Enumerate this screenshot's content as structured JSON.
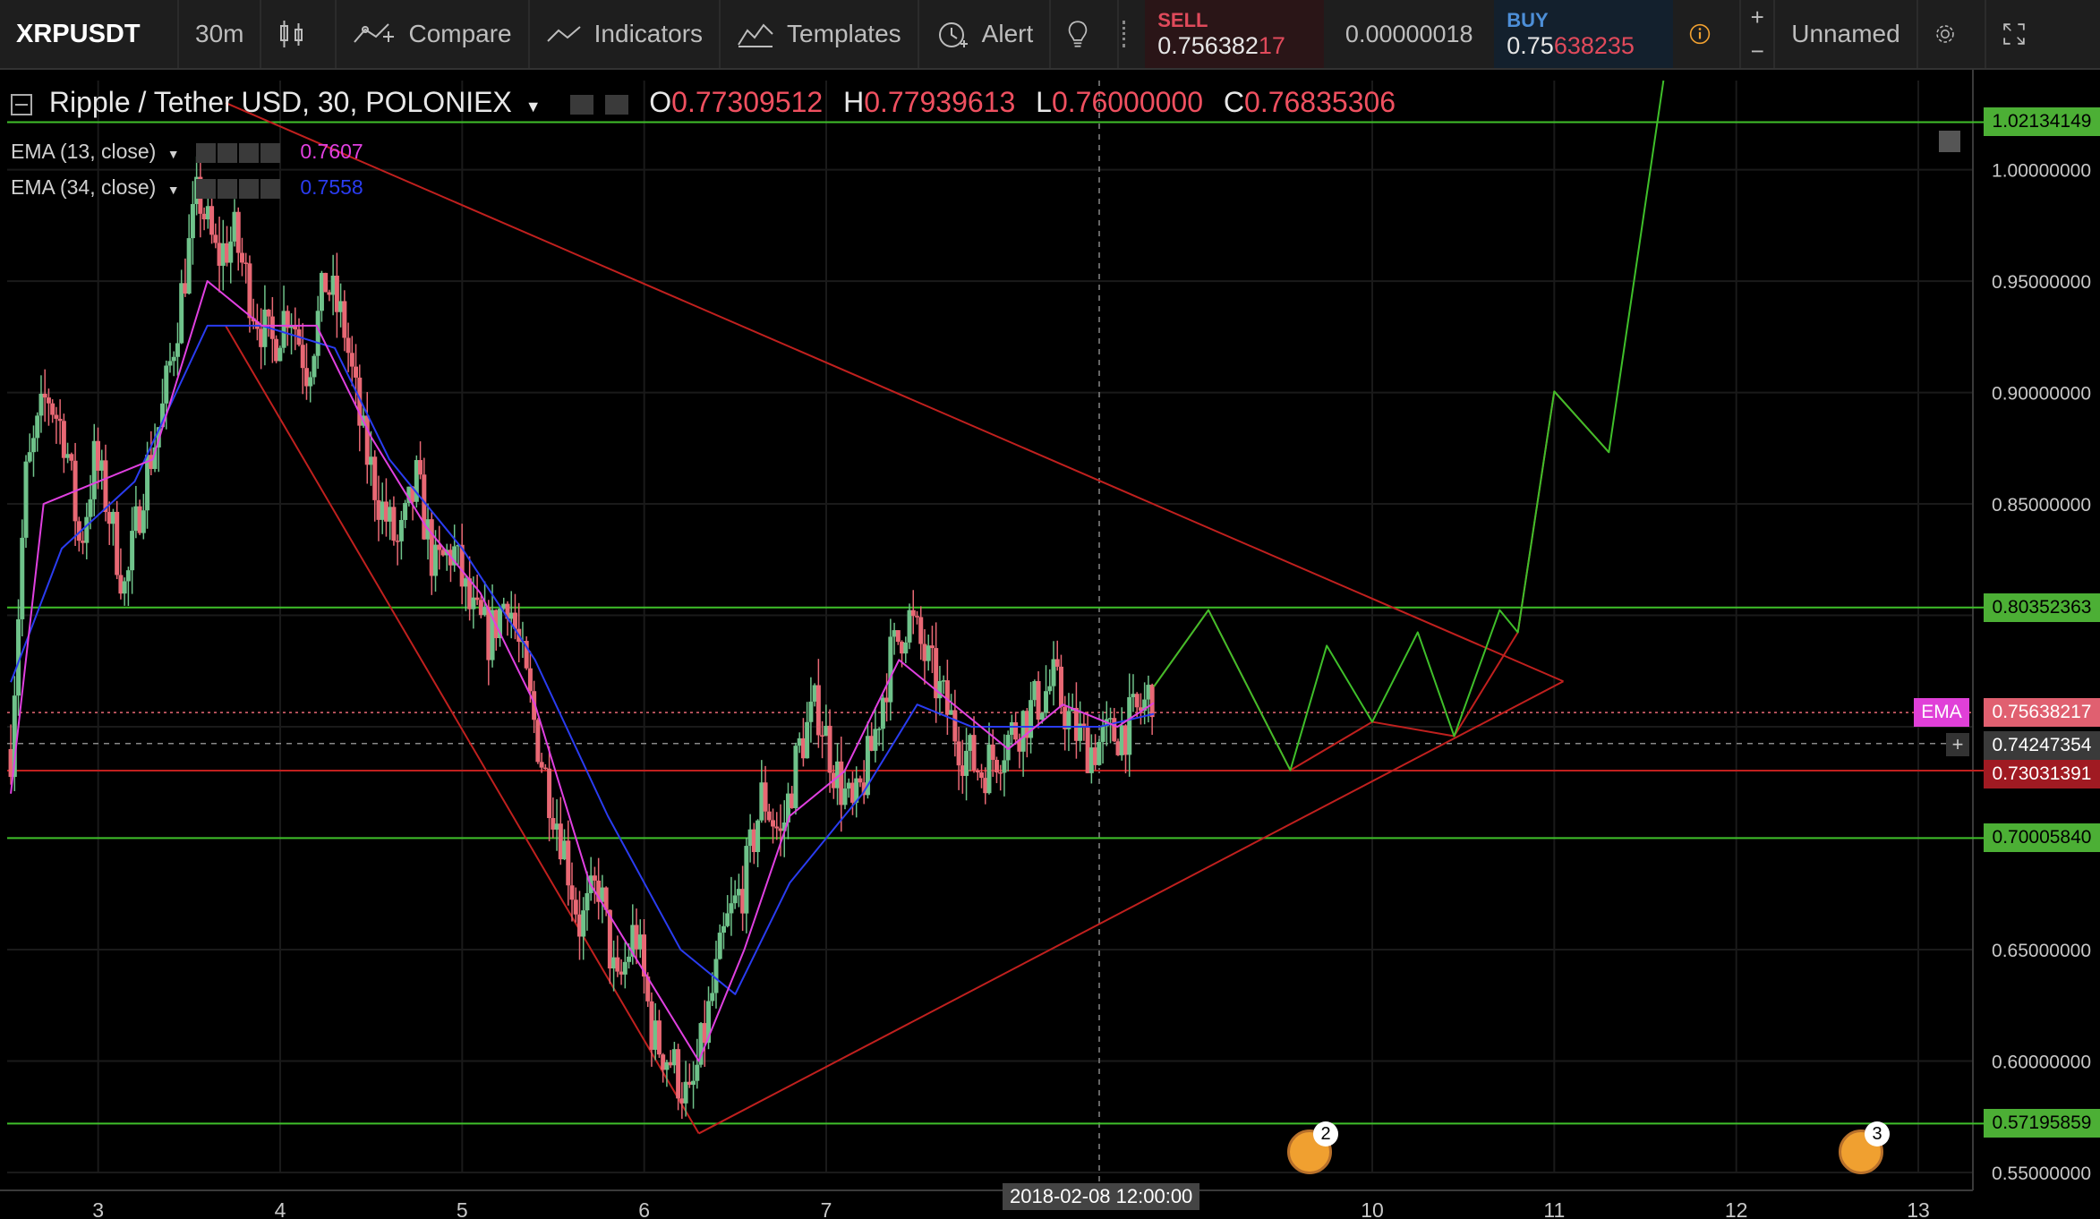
{
  "toolbar": {
    "symbol": "XRPUSDT",
    "interval": "30m",
    "compare": "Compare",
    "indicators": "Indicators",
    "templates": "Templates",
    "alert": "Alert",
    "sell_label": "SELL",
    "sell_price_main": "0.756382",
    "sell_price_tail": "17",
    "spread": "0.00000018",
    "buy_label": "BUY",
    "buy_price_main": "0.75",
    "buy_price_tail": "638235",
    "layout_name": "Unnamed"
  },
  "legend": {
    "title": "Ripple / Tether USD, 30, POLONIEX",
    "o_label": "O",
    "o_value": "0.77309512",
    "h_label": "H",
    "h_value": "0.77939613",
    "l_label": "L",
    "l_value": "0.76000000",
    "c_label": "C",
    "c_value": "0.76835306",
    "ema1_label": "EMA (13, close)",
    "ema1_value": "0.7607",
    "ema1_color": "#e040e0",
    "ema2_label": "EMA (34, close)",
    "ema2_value": "0.7558",
    "ema2_color": "#2a3cf0"
  },
  "colors": {
    "up": "#6fc28a",
    "down": "#e86874",
    "hline": "#3fbf2a",
    "trend": "#c0201e",
    "background": "#000000"
  },
  "price_tags": {
    "t1": "1.02134149",
    "t2": "0.80352363",
    "t3": "0.75638217",
    "t4": "0.74247354",
    "t5": "0.73031391",
    "t6": "0.70005840",
    "t7": "0.57195859",
    "ema_badge": "EMA",
    "crosshair_time": "2018-02-08 12:00:00",
    "event_count_1": "2",
    "event_count_2": "3"
  },
  "chart_data": {
    "type": "candlestick",
    "y_axis": {
      "range": [
        0.55,
        1.04
      ],
      "ticks": [
        "0.55000000",
        "0.60000000",
        "0.65000000",
        "0.85000000",
        "0.90000000",
        "0.95000000",
        "1.00000000"
      ]
    },
    "x_axis": {
      "range": [
        2.5,
        13.3
      ],
      "ticks": [
        "3",
        "4",
        "5",
        "6",
        "7",
        "10",
        "11",
        "12",
        "13"
      ]
    },
    "horizontal_levels": [
      1.02134149,
      0.80352363,
      0.7000584,
      0.57195859,
      0.73031391
    ],
    "last_price": 0.75638217,
    "crosshair_price": 0.74247354,
    "price_path": [
      [
        2.52,
        0.74
      ],
      [
        2.6,
        0.86
      ],
      [
        2.72,
        0.9
      ],
      [
        2.82,
        0.88
      ],
      [
        2.9,
        0.83
      ],
      [
        2.98,
        0.87
      ],
      [
        3.05,
        0.85
      ],
      [
        3.15,
        0.81
      ],
      [
        3.25,
        0.86
      ],
      [
        3.35,
        0.89
      ],
      [
        3.45,
        0.94
      ],
      [
        3.55,
        0.99
      ],
      [
        3.65,
        0.96
      ],
      [
        3.75,
        0.97
      ],
      [
        3.85,
        0.94
      ],
      [
        3.95,
        0.92
      ],
      [
        4.05,
        0.94
      ],
      [
        4.15,
        0.91
      ],
      [
        4.25,
        0.95
      ],
      [
        4.35,
        0.93
      ],
      [
        4.45,
        0.88
      ],
      [
        4.55,
        0.85
      ],
      [
        4.65,
        0.83
      ],
      [
        4.75,
        0.86
      ],
      [
        4.85,
        0.82
      ],
      [
        4.95,
        0.83
      ],
      [
        5.05,
        0.8
      ],
      [
        5.15,
        0.79
      ],
      [
        5.25,
        0.81
      ],
      [
        5.35,
        0.77
      ],
      [
        5.45,
        0.73
      ],
      [
        5.55,
        0.7
      ],
      [
        5.65,
        0.66
      ],
      [
        5.75,
        0.68
      ],
      [
        5.85,
        0.63
      ],
      [
        5.95,
        0.66
      ],
      [
        6.05,
        0.61
      ],
      [
        6.15,
        0.6
      ],
      [
        6.25,
        0.58
      ],
      [
        6.35,
        0.62
      ],
      [
        6.45,
        0.66
      ],
      [
        6.55,
        0.68
      ],
      [
        6.65,
        0.72
      ],
      [
        6.75,
        0.7
      ],
      [
        6.85,
        0.74
      ],
      [
        6.95,
        0.76
      ],
      [
        7.05,
        0.73
      ],
      [
        7.15,
        0.71
      ],
      [
        7.25,
        0.74
      ],
      [
        7.35,
        0.78
      ],
      [
        7.45,
        0.8
      ],
      [
        7.55,
        0.78
      ],
      [
        7.65,
        0.76
      ],
      [
        7.75,
        0.74
      ],
      [
        7.85,
        0.73
      ],
      [
        7.95,
        0.74
      ],
      [
        8.05,
        0.75
      ],
      [
        8.15,
        0.76
      ],
      [
        8.25,
        0.77
      ],
      [
        8.35,
        0.75
      ],
      [
        8.45,
        0.74
      ],
      [
        8.55,
        0.745
      ],
      [
        8.65,
        0.75
      ],
      [
        8.75,
        0.76
      ],
      [
        8.8,
        0.768
      ]
    ],
    "ema13_path": [
      [
        2.52,
        0.72
      ],
      [
        2.7,
        0.85
      ],
      [
        3.0,
        0.86
      ],
      [
        3.3,
        0.87
      ],
      [
        3.6,
        0.95
      ],
      [
        3.9,
        0.93
      ],
      [
        4.2,
        0.93
      ],
      [
        4.5,
        0.88
      ],
      [
        4.8,
        0.84
      ],
      [
        5.1,
        0.81
      ],
      [
        5.4,
        0.76
      ],
      [
        5.7,
        0.68
      ],
      [
        6.0,
        0.64
      ],
      [
        6.3,
        0.6
      ],
      [
        6.55,
        0.65
      ],
      [
        6.8,
        0.71
      ],
      [
        7.1,
        0.73
      ],
      [
        7.4,
        0.78
      ],
      [
        7.7,
        0.76
      ],
      [
        8.0,
        0.74
      ],
      [
        8.3,
        0.76
      ],
      [
        8.6,
        0.75
      ],
      [
        8.8,
        0.7607
      ]
    ],
    "ema34_path": [
      [
        2.52,
        0.77
      ],
      [
        2.8,
        0.83
      ],
      [
        3.2,
        0.86
      ],
      [
        3.6,
        0.93
      ],
      [
        3.9,
        0.93
      ],
      [
        4.3,
        0.92
      ],
      [
        4.6,
        0.87
      ],
      [
        5.0,
        0.83
      ],
      [
        5.4,
        0.78
      ],
      [
        5.8,
        0.71
      ],
      [
        6.2,
        0.65
      ],
      [
        6.5,
        0.63
      ],
      [
        6.8,
        0.68
      ],
      [
        7.2,
        0.72
      ],
      [
        7.5,
        0.76
      ],
      [
        7.8,
        0.75
      ],
      [
        8.2,
        0.75
      ],
      [
        8.5,
        0.75
      ],
      [
        8.8,
        0.7558
      ]
    ],
    "triangle_lines": [
      [
        [
          3.7,
          1.03
        ],
        [
          11.05,
          0.7704
        ]
      ],
      [
        [
          3.7,
          0.93
        ],
        [
          6.3,
          0.5675
        ]
      ],
      [
        [
          6.3,
          0.5675
        ],
        [
          11.05,
          0.7704
        ]
      ]
    ],
    "projection_red": [
      [
        8.8,
        0.768
      ],
      [
        9.1,
        0.8024
      ],
      [
        9.55,
        0.7305
      ],
      [
        10.0,
        0.7522
      ],
      [
        10.45,
        0.7458
      ],
      [
        10.8,
        0.7924
      ],
      [
        11.0,
        0.9005
      ],
      [
        11.3,
        0.8732
      ]
    ],
    "projection_green": [
      [
        8.8,
        0.768
      ],
      [
        9.1,
        0.8024
      ],
      [
        9.55,
        0.7305
      ],
      [
        9.75,
        0.7864
      ],
      [
        10.0,
        0.7522
      ],
      [
        10.25,
        0.7924
      ],
      [
        10.45,
        0.7458
      ],
      [
        10.7,
        0.8024
      ],
      [
        10.8,
        0.7924
      ],
      [
        11.0,
        0.9005
      ],
      [
        11.3,
        0.8732
      ],
      [
        11.6,
        1.04
      ]
    ],
    "ylabel": "",
    "xlabel": ""
  }
}
